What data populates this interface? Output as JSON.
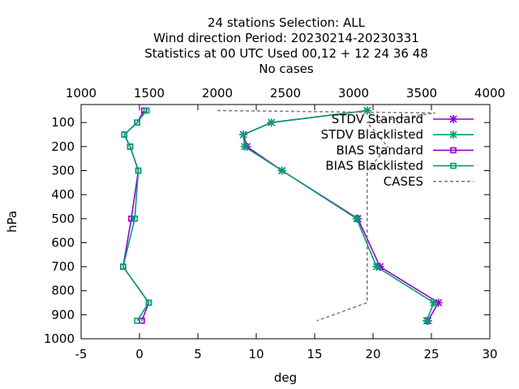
{
  "chart_data": {
    "type": "line",
    "title_lines": [
      "24 stations Selection: ALL",
      "Wind direction  Period: 20230214-20230331",
      "Statistics at 00 UTC  Used  00,12  + 12 24 36 48",
      "No cases"
    ],
    "xlabel": "deg",
    "ylabel": "hPa",
    "xlim": [
      -5,
      30
    ],
    "ylim": [
      1000,
      25
    ],
    "x2lim": [
      1000,
      4000
    ],
    "x_ticks": [
      "-5",
      "0",
      "5",
      "10",
      "15",
      "20",
      "25",
      "30"
    ],
    "x2_ticks": [
      "1000",
      "1500",
      "2000",
      "2500",
      "3000",
      "3500",
      "4000"
    ],
    "y_ticks": [
      "100",
      "200",
      "300",
      "400",
      "500",
      "600",
      "700",
      "800",
      "900",
      "1000"
    ],
    "grid": false,
    "legend_position": "top-right",
    "series": [
      {
        "name": "STDV Standard",
        "color": "#9400d3",
        "marker": "cross-x",
        "axis": "x1",
        "points": [
          [
            19.5,
            50
          ],
          [
            11.3,
            100
          ],
          [
            8.9,
            150
          ],
          [
            9.2,
            200
          ],
          [
            12.2,
            300
          ],
          [
            18.7,
            500
          ],
          [
            20.6,
            700
          ],
          [
            25.6,
            850
          ],
          [
            24.7,
            925
          ]
        ]
      },
      {
        "name": "STDV Blacklisted",
        "color": "#009e73",
        "marker": "cross-x",
        "axis": "x1",
        "points": [
          [
            19.5,
            50
          ],
          [
            11.3,
            100
          ],
          [
            8.9,
            150
          ],
          [
            9.0,
            200
          ],
          [
            12.2,
            300
          ],
          [
            18.6,
            500
          ],
          [
            20.3,
            700
          ],
          [
            25.2,
            850
          ],
          [
            24.6,
            925
          ]
        ]
      },
      {
        "name": "BIAS Standard",
        "color": "#9400d3",
        "marker": "square",
        "axis": "x1",
        "points": [
          [
            0.4,
            50
          ],
          [
            -0.2,
            100
          ],
          [
            -1.3,
            150
          ],
          [
            -0.8,
            200
          ],
          [
            -0.1,
            300
          ],
          [
            -0.7,
            500
          ],
          [
            -1.4,
            700
          ],
          [
            0.8,
            850
          ],
          [
            0.2,
            925
          ]
        ]
      },
      {
        "name": "BIAS Blacklisted",
        "color": "#009e73",
        "marker": "square",
        "axis": "x1",
        "points": [
          [
            0.6,
            50
          ],
          [
            -0.2,
            100
          ],
          [
            -1.3,
            150
          ],
          [
            -0.8,
            200
          ],
          [
            -0.1,
            300
          ],
          [
            -0.4,
            500
          ],
          [
            -1.4,
            700
          ],
          [
            0.8,
            850
          ],
          [
            -0.2,
            925
          ]
        ]
      },
      {
        "name": "CASES",
        "color": "#808080",
        "marker": "none",
        "dashed": true,
        "axis": "x2",
        "points": [
          [
            2000,
            50
          ],
          [
            3600,
            60
          ],
          [
            3100,
            100
          ],
          [
            3250,
            200
          ],
          [
            3100,
            300
          ],
          [
            3100,
            500
          ],
          [
            3100,
            700
          ],
          [
            3100,
            850
          ],
          [
            2730,
            925
          ]
        ]
      }
    ]
  }
}
